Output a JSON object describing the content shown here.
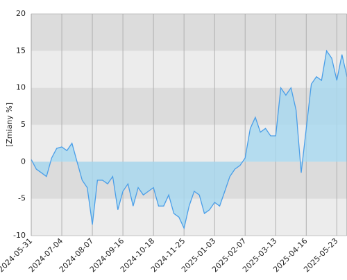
{
  "chart_data": {
    "type": "area",
    "y_label": "[Zmiany %]",
    "x": [
      "2024-05-31",
      "2024-06-06",
      "2024-06-12",
      "2024-06-18",
      "2024-06-24",
      "2024-06-28",
      "2024-07-04",
      "2024-07-10",
      "2024-07-16",
      "2024-07-22",
      "2024-07-26",
      "2024-08-01",
      "2024-08-07",
      "2024-08-14",
      "2024-08-20",
      "2024-08-26",
      "2024-09-02",
      "2024-09-09",
      "2024-09-16",
      "2024-09-20",
      "2024-09-26",
      "2024-10-02",
      "2024-10-08",
      "2024-10-14",
      "2024-10-18",
      "2024-10-24",
      "2024-10-30",
      "2024-11-06",
      "2024-11-12",
      "2024-11-19",
      "2024-11-25",
      "2024-12-02",
      "2024-12-06",
      "2024-12-12",
      "2024-12-18",
      "2024-12-27",
      "2025-01-03",
      "2025-01-09",
      "2025-01-15",
      "2025-01-21",
      "2025-01-27",
      "2025-02-03",
      "2025-02-07",
      "2025-02-13",
      "2025-02-19",
      "2025-02-25",
      "2025-03-03",
      "2025-03-07",
      "2025-03-13",
      "2025-03-19",
      "2025-03-25",
      "2025-03-31",
      "2025-04-04",
      "2025-04-10",
      "2025-04-16",
      "2025-04-23",
      "2025-04-29",
      "2025-05-06",
      "2025-05-12",
      "2025-05-16",
      "2025-05-23",
      "2025-05-29",
      "2025-06-03"
    ],
    "series": [
      {
        "name": "Zmiany",
        "color": "#4a9ee8",
        "fill": "#a6d8f0",
        "values": [
          0.3,
          -1,
          -1.5,
          -2,
          0.5,
          1.8,
          2,
          1.5,
          2.5,
          0,
          -2.5,
          -3.5,
          -8.5,
          -2.5,
          -2.5,
          -3,
          -2,
          -6.5,
          -4,
          -3,
          -6,
          -3.5,
          -4.5,
          -4,
          -3.5,
          -6,
          -6,
          -4.5,
          -7,
          -7.5,
          -9,
          -6,
          -4,
          -4.5,
          -7,
          -6.5,
          -5.5,
          -6,
          -4,
          -2,
          -1,
          -0.5,
          0.5,
          4.5,
          6,
          4,
          4.5,
          3.5,
          3.5,
          10,
          9,
          10,
          7,
          -1.5,
          4.5,
          10.5,
          11.5,
          11,
          15,
          14,
          11,
          14.5,
          11.5
        ]
      }
    ],
    "xticks": [
      "2024-05-31",
      "2024-07-04",
      "2024-08-07",
      "2024-09-16",
      "2024-10-18",
      "2024-11-25",
      "2025-01-03",
      "2025-02-07",
      "2025-03-13",
      "2025-04-16",
      "2025-05-23"
    ],
    "ylim": [
      -10,
      20
    ],
    "yticks": [
      -10,
      -5,
      0,
      5,
      10,
      15,
      20
    ],
    "grid": true
  }
}
